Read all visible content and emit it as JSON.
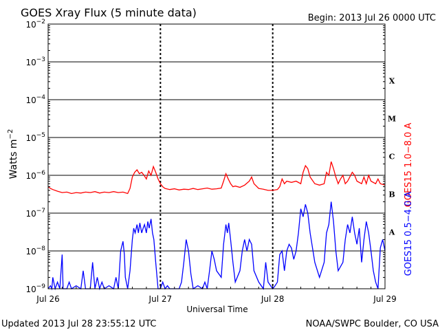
{
  "chart_data": {
    "type": "line",
    "title": "GOES Xray Flux (5 minute data)",
    "begin_label": "Begin:  2013 Jul 26 0000 UTC",
    "ylabel_base": "Watts m",
    "ylabel_exp": "−2",
    "xlabel": "Universal Time",
    "y_scale": "log",
    "ylim": [
      1e-09,
      0.01
    ],
    "y_ticks": [
      {
        "base": "10",
        "exp": "−2",
        "value": 0.01
      },
      {
        "base": "10",
        "exp": "−3",
        "value": 0.001
      },
      {
        "base": "10",
        "exp": "−4",
        "value": 0.0001
      },
      {
        "base": "10",
        "exp": "−5",
        "value": 1e-05
      },
      {
        "base": "10",
        "exp": "−6",
        "value": 1e-06
      },
      {
        "base": "10",
        "exp": "−7",
        "value": 1e-07
      },
      {
        "base": "10",
        "exp": "−8",
        "value": 1e-08
      },
      {
        "base": "10",
        "exp": "−9",
        "value": 1e-09
      }
    ],
    "xlim_hours": [
      0,
      72
    ],
    "x_ticks": [
      {
        "label": "Jul 26",
        "hour": 0
      },
      {
        "label": "Jul 27",
        "hour": 24
      },
      {
        "label": "Jul 28",
        "hour": 48
      },
      {
        "label": "Jul 29",
        "hour": 72
      }
    ],
    "flare_classes": [
      {
        "label": "X",
        "value": 0.0001
      },
      {
        "label": "M",
        "value": 1e-05
      },
      {
        "label": "C",
        "value": 1e-06
      },
      {
        "label": "B",
        "value": 1e-07
      },
      {
        "label": "A",
        "value": 1e-08
      }
    ],
    "grid": true,
    "series": [
      {
        "name": "GOES15 1.0−8.0 A",
        "color": "#ff0000",
        "points": [
          [
            0,
            5e-07
          ],
          [
            0.5,
            4.5e-07
          ],
          [
            1,
            4.2e-07
          ],
          [
            2,
            3.8e-07
          ],
          [
            3,
            3.5e-07
          ],
          [
            4,
            3.6e-07
          ],
          [
            5,
            3.3e-07
          ],
          [
            6,
            3.5e-07
          ],
          [
            7,
            3.4e-07
          ],
          [
            8,
            3.6e-07
          ],
          [
            9,
            3.5e-07
          ],
          [
            10,
            3.7e-07
          ],
          [
            11,
            3.4e-07
          ],
          [
            12,
            3.6e-07
          ],
          [
            13,
            3.5e-07
          ],
          [
            14,
            3.7e-07
          ],
          [
            15,
            3.5e-07
          ],
          [
            16,
            3.6e-07
          ],
          [
            17,
            3.3e-07
          ],
          [
            17.5,
            4.5e-07
          ],
          [
            18,
            9e-07
          ],
          [
            18.5,
            1.2e-06
          ],
          [
            19,
            1.4e-06
          ],
          [
            19.5,
            1.1e-06
          ],
          [
            20,
            1.2e-06
          ],
          [
            20.5,
            1e-06
          ],
          [
            21,
            8e-07
          ],
          [
            21.5,
            1.3e-06
          ],
          [
            22,
            1e-06
          ],
          [
            22.5,
            1.7e-06
          ],
          [
            23,
            1.2e-06
          ],
          [
            23.5,
            8e-07
          ],
          [
            24,
            6e-07
          ],
          [
            24.5,
            5e-07
          ],
          [
            25,
            4.5e-07
          ],
          [
            26,
            4.2e-07
          ],
          [
            27,
            4.4e-07
          ],
          [
            28,
            4.1e-07
          ],
          [
            29,
            4.3e-07
          ],
          [
            30,
            4.2e-07
          ],
          [
            31,
            4.5e-07
          ],
          [
            32,
            4.2e-07
          ],
          [
            33,
            4.4e-07
          ],
          [
            34,
            4.6e-07
          ],
          [
            35,
            4.3e-07
          ],
          [
            36,
            4.4e-07
          ],
          [
            37,
            4.6e-07
          ],
          [
            37.5,
            7e-07
          ],
          [
            38,
            1.1e-06
          ],
          [
            38.5,
            8e-07
          ],
          [
            39,
            6e-07
          ],
          [
            39.5,
            5e-07
          ],
          [
            40,
            5.2e-07
          ],
          [
            41,
            4.8e-07
          ],
          [
            42,
            5.5e-07
          ],
          [
            43,
            7e-07
          ],
          [
            43.5,
            9e-07
          ],
          [
            44,
            6e-07
          ],
          [
            45,
            4.5e-07
          ],
          [
            46,
            4.3e-07
          ],
          [
            47,
            4e-07
          ],
          [
            48,
            4e-07
          ],
          [
            49,
            4.2e-07
          ],
          [
            49.5,
            5e-07
          ],
          [
            50,
            8e-07
          ],
          [
            50.5,
            6e-07
          ],
          [
            51,
            7e-07
          ],
          [
            52,
            6.5e-07
          ],
          [
            53,
            7e-07
          ],
          [
            54,
            6e-07
          ],
          [
            54.5,
            1.2e-06
          ],
          [
            55,
            1.8e-06
          ],
          [
            55.5,
            1.5e-06
          ],
          [
            56,
            9e-07
          ],
          [
            57,
            6e-07
          ],
          [
            58,
            5.5e-07
          ],
          [
            59,
            6e-07
          ],
          [
            59.5,
            1.2e-06
          ],
          [
            60,
            1e-06
          ],
          [
            60.5,
            2.3e-06
          ],
          [
            61,
            1.5e-06
          ],
          [
            61.5,
            9e-07
          ],
          [
            62,
            6e-07
          ],
          [
            62.5,
            8e-07
          ],
          [
            63,
            1e-06
          ],
          [
            63.5,
            6e-07
          ],
          [
            64,
            7e-07
          ],
          [
            65,
            1.2e-06
          ],
          [
            65.5,
            1e-06
          ],
          [
            66,
            7e-07
          ],
          [
            67,
            6e-07
          ],
          [
            67.5,
            9e-07
          ],
          [
            68,
            6e-07
          ],
          [
            68.5,
            1e-06
          ],
          [
            69,
            7e-07
          ],
          [
            70,
            6e-07
          ],
          [
            70.5,
            8e-07
          ],
          [
            71,
            6e-07
          ],
          [
            72,
            5.5e-07
          ]
        ]
      },
      {
        "name": "GOES15 0.5−4.0 A",
        "color": "#0000ff",
        "points": [
          [
            0,
            1e-09
          ],
          [
            0.5,
            1.2e-09
          ],
          [
            0.8,
            1e-09
          ],
          [
            1,
            2e-09
          ],
          [
            1.5,
            1e-09
          ],
          [
            2,
            1.5e-09
          ],
          [
            2.5,
            1e-09
          ],
          [
            3,
            8e-09
          ],
          [
            3.2,
            1e-09
          ],
          [
            4,
            1e-09
          ],
          [
            4.5,
            1.5e-09
          ],
          [
            5,
            1e-09
          ],
          [
            6,
            1.2e-09
          ],
          [
            7,
            1e-09
          ],
          [
            7.5,
            3e-09
          ],
          [
            8,
            1e-09
          ],
          [
            9,
            1e-09
          ],
          [
            9.5,
            5e-09
          ],
          [
            10,
            1e-09
          ],
          [
            10.5,
            2e-09
          ],
          [
            11,
            1e-09
          ],
          [
            11.5,
            1.5e-09
          ],
          [
            12,
            1e-09
          ],
          [
            13,
            1.2e-09
          ],
          [
            14,
            1e-09
          ],
          [
            14.5,
            2e-09
          ],
          [
            15,
            1e-09
          ],
          [
            15.5,
            1e-08
          ],
          [
            16,
            1.8e-08
          ],
          [
            16.3,
            8e-09
          ],
          [
            16.5,
            2e-09
          ],
          [
            17,
            1e-09
          ],
          [
            17.5,
            3e-09
          ],
          [
            18,
            2e-08
          ],
          [
            18.3,
            4e-08
          ],
          [
            18.6,
            3e-08
          ],
          [
            19,
            5e-08
          ],
          [
            19.3,
            3e-08
          ],
          [
            19.6,
            5.5e-08
          ],
          [
            20,
            3e-08
          ],
          [
            20.3,
            4e-08
          ],
          [
            20.6,
            5e-08
          ],
          [
            21,
            3e-08
          ],
          [
            21.3,
            6e-08
          ],
          [
            21.6,
            4e-08
          ],
          [
            22,
            7e-08
          ],
          [
            22.3,
            3e-08
          ],
          [
            22.6,
            2e-08
          ],
          [
            23,
            5e-09
          ],
          [
            23.5,
            1e-09
          ],
          [
            24,
            1e-09
          ],
          [
            24.5,
            1.5e-09
          ],
          [
            25,
            1e-09
          ],
          [
            25.5,
            1.2e-09
          ],
          [
            26,
            1e-09
          ],
          [
            27,
            1e-09
          ],
          [
            28,
            1e-09
          ],
          [
            28.5,
            1.5e-09
          ],
          [
            29,
            5e-09
          ],
          [
            29.5,
            2e-08
          ],
          [
            30,
            1e-08
          ],
          [
            30.5,
            2.5e-09
          ],
          [
            31,
            1e-09
          ],
          [
            32,
            1.2e-09
          ],
          [
            33,
            1e-09
          ],
          [
            33.5,
            1.5e-09
          ],
          [
            34,
            1e-09
          ],
          [
            34.5,
            3e-09
          ],
          [
            35,
            1e-08
          ],
          [
            35.5,
            6e-09
          ],
          [
            36,
            3e-09
          ],
          [
            37,
            2e-09
          ],
          [
            37.5,
            1.5e-08
          ],
          [
            38,
            5e-08
          ],
          [
            38.3,
            3e-08
          ],
          [
            38.6,
            5.5e-08
          ],
          [
            39,
            2e-08
          ],
          [
            39.5,
            5e-09
          ],
          [
            40,
            1.5e-09
          ],
          [
            41,
            3e-09
          ],
          [
            41.5,
            1e-08
          ],
          [
            42,
            2e-08
          ],
          [
            42.5,
            1e-08
          ],
          [
            43,
            2e-08
          ],
          [
            43.5,
            1.5e-08
          ],
          [
            44,
            3e-09
          ],
          [
            45,
            1.5e-09
          ],
          [
            46,
            1e-09
          ],
          [
            46.5,
            5e-09
          ],
          [
            47,
            1.5e-09
          ],
          [
            48,
            1e-09
          ],
          [
            48.5,
            1.2e-09
          ],
          [
            49,
            1.5e-09
          ],
          [
            49.5,
            8e-09
          ],
          [
            50,
            1e-08
          ],
          [
            50.5,
            3e-09
          ],
          [
            51,
            1e-08
          ],
          [
            51.5,
            1.5e-08
          ],
          [
            52,
            1.2e-08
          ],
          [
            52.5,
            6e-09
          ],
          [
            53,
            1e-08
          ],
          [
            53.5,
            3e-08
          ],
          [
            54,
            1.3e-07
          ],
          [
            54.5,
            8e-08
          ],
          [
            55,
            1.7e-07
          ],
          [
            55.5,
            1e-07
          ],
          [
            56,
            3e-08
          ],
          [
            57,
            5e-09
          ],
          [
            58,
            2e-09
          ],
          [
            59,
            5e-09
          ],
          [
            59.5,
            3e-08
          ],
          [
            60,
            5e-08
          ],
          [
            60.5,
            2e-07
          ],
          [
            61,
            6e-08
          ],
          [
            61.5,
            1e-08
          ],
          [
            62,
            3e-09
          ],
          [
            63,
            5e-09
          ],
          [
            63.5,
            2e-08
          ],
          [
            64,
            5e-08
          ],
          [
            64.5,
            3e-08
          ],
          [
            65,
            8e-08
          ],
          [
            65.5,
            3e-08
          ],
          [
            66,
            1.5e-08
          ],
          [
            66.5,
            4e-08
          ],
          [
            67,
            5e-09
          ],
          [
            67.5,
            2e-08
          ],
          [
            68,
            6e-08
          ],
          [
            68.5,
            3e-08
          ],
          [
            69,
            1e-08
          ],
          [
            69.5,
            3e-09
          ],
          [
            70,
            1.5e-09
          ],
          [
            70.5,
            1e-09
          ],
          [
            71,
            1.2e-08
          ],
          [
            71.5,
            2e-08
          ],
          [
            72,
            1e-08
          ]
        ]
      }
    ]
  },
  "footer": {
    "updated": "Updated 2013 Jul 28 23:55:12 UTC",
    "credit": "NOAA/SWPC Boulder, CO USA"
  }
}
